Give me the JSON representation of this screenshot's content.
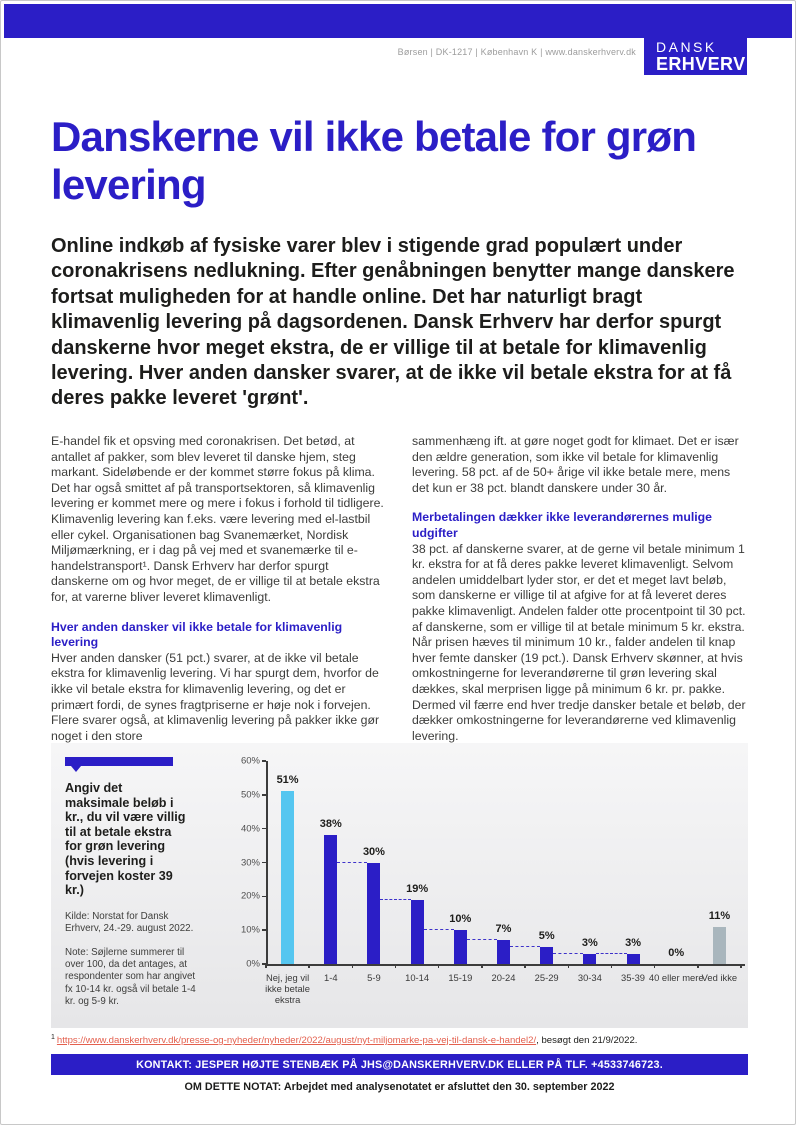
{
  "theme": {
    "brand": "#2B1EC6",
    "highlight": "#55C6F0",
    "muted_bar": "#A9B6BD",
    "link_red": "#E4604E"
  },
  "header": {
    "address_line": "Børsen | DK-1217 | København K | www.danskerhverv.dk",
    "logo_line1": "DANSK",
    "logo_line2": "ERHVERV"
  },
  "main": {
    "title": "Danskerne vil ikke betale for grøn levering",
    "intro": "Online indkøb af fysiske varer blev i stigende grad populært under coronakrisens nedlukning. Efter genåbningen benytter mange danskere fortsat muligheden for at handle online. Det har naturligt bragt klimavenlig levering på dagsordenen. Dansk Erhverv har derfor spurgt danskerne hvor meget ekstra, de er villige til at betale for klimavenlig levering. Hver anden dansker svarer, at de ikke vil betale ekstra for at få deres pakke leveret 'grønt'.",
    "left_column": {
      "p1": "E-handel fik et opsving med coronakrisen. Det betød, at antallet af pakker, som blev leveret til danske hjem, steg markant. Sideløbende er der kommet større fokus på klima. Det har også smittet af på transportsektoren, så klimavenlig levering er kommet mere og mere i fokus i forhold til tidligere. Klimavenlig levering kan f.eks. være levering med el-lastbil eller cykel. Organisationen bag Svanemærket, Nordisk Miljømærkning, er i dag på vej med et svanemærke til e-handelstransport¹. Dansk Erhverv har derfor spurgt danskerne om og hvor meget, de er villige til at betale ekstra for, at varerne bliver leveret klimavenligt.",
      "subhead": "Hver anden dansker vil ikke betale for klimavenlig levering",
      "p2": "Hver anden dansker (51 pct.) svarer, at de ikke vil betale ekstra for klimavenlig levering. Vi har spurgt dem, hvorfor de ikke vil betale ekstra for klimavenlig levering, og det er primært fordi, de synes fragtpriserne er høje nok i forvejen. Flere svarer også, at klimavenlig levering på pakker ikke gør noget i den store"
    },
    "right_column": {
      "p1": "sammenhæng ift. at gøre noget godt for klimaet. Det er især den ældre generation, som ikke vil betale for klimavenlig levering. 58 pct. af de 50+ årige vil ikke betale mere, mens det kun er 38 pct. blandt danskere under 30 år.",
      "subhead": "Merbetalingen dækker ikke leverandørernes mulige udgifter",
      "p2": "38 pct. af danskerne svarer, at de gerne vil betale minimum 1 kr. ekstra for at få deres pakke leveret klimavenligt. Selvom andelen umiddelbart lyder stor, er det et meget lavt beløb, som danskerne er villige til at afgive for at få leveret deres pakke klimavenligt. Andelen falder otte procentpoint til 30 pct. af danskerne, som er villige til at betale minimum 5 kr. ekstra. Når prisen hæves til minimum 10 kr., falder andelen til knap hver femte dansker (19 pct.). Dansk Erhverv skønner, at hvis omkostningerne for leverandørerne til grøn levering skal dækkes, skal merprisen ligge på minimum 6 kr. pr. pakke. Dermed vil færre end hver tredje dansker betale et beløb, der dækker omkostningerne for leverandørerne ved klimavenlig levering."
    }
  },
  "chart_data": {
    "type": "bar",
    "title": "Angiv det maksimale beløb i kr., du vil være villig til at betale ekstra for grøn levering (hvis levering i forvejen koster 39 kr.)",
    "source": "Kilde: Norstat for Dansk Erhverv, 24.-29. august 2022.",
    "note": "Note: Søjlerne summerer til over 100, da det antages, at respondenter som har angivet fx 10-14 kr. også vil betale 1-4 kr. og 5-9 kr.",
    "categories": [
      "Nej, jeg vil ikke betale ekstra",
      "1-4",
      "5-9",
      "10-14",
      "15-19",
      "20-24",
      "25-29",
      "30-34",
      "35-39",
      "40 eller mere",
      "Ved ikke"
    ],
    "values": [
      51,
      38,
      30,
      19,
      10,
      7,
      5,
      3,
      3,
      0,
      11
    ],
    "labels": [
      "51%",
      "38%",
      "30%",
      "19%",
      "10%",
      "7%",
      "5%",
      "3%",
      "3%",
      "0%",
      "11%"
    ],
    "bar_colors": [
      "#55C6F0",
      "#2B1EC6",
      "#2B1EC6",
      "#2B1EC6",
      "#2B1EC6",
      "#2B1EC6",
      "#2B1EC6",
      "#2B1EC6",
      "#2B1EC6",
      "#2B1EC6",
      "#A9B6BD"
    ],
    "connectors": [
      [
        1,
        2
      ],
      [
        2,
        3
      ],
      [
        3,
        4
      ],
      [
        4,
        5
      ],
      [
        5,
        6
      ],
      [
        6,
        7
      ],
      [
        7,
        8
      ]
    ],
    "connector_color": "#2B1EC6",
    "xlabel": "",
    "ylabel": "",
    "ylim": [
      0,
      60
    ],
    "yticks": [
      "60%",
      "50%",
      "40%",
      "30%",
      "20%",
      "10%",
      "0%"
    ],
    "grid": false,
    "legend": null
  },
  "footnote": {
    "marker": "1",
    "link_text": "https://www.danskerhverv.dk/presse-og-nyheder/nyheder/2022/august/nyt-miljomarke-pa-vej-til-dansk-e-handel2/",
    "suffix": ", besøgt den 21/9/2022."
  },
  "footer": {
    "contact": "KONTAKT: JESPER HØJTE STENBÆK PÅ JHS@DANSKERHVERV.DK ELLER PÅ TLF. +4533746723.",
    "about": "OM DETTE NOTAT: Arbejdet med analysenotatet er afsluttet den 30. september 2022"
  }
}
